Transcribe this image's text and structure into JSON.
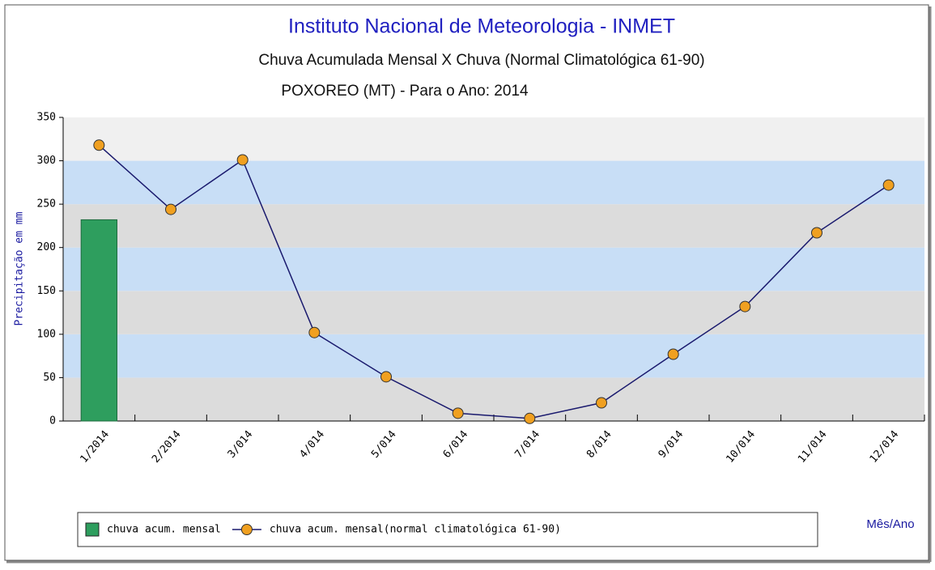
{
  "chart_data": {
    "type": "combo",
    "title": "Instituto Nacional de Meteorologia - INMET",
    "subtitle": "Chuva Acumulada Mensal X Chuva (Normal Climatológica 61-90)",
    "subtitle2": "POXOREO (MT) - Para o Ano: 2014",
    "y_label": "Precipitação em mm",
    "x_label": "Mês/Ano",
    "categories": [
      "1/2014",
      "2/2014",
      "3/014",
      "4/014",
      "5/014",
      "6/014",
      "7/014",
      "8/014",
      "9/014",
      "10/014",
      "11/014",
      "12/014"
    ],
    "series": [
      {
        "name": "chuva acum. mensal",
        "type": "bar",
        "color": "#2e9e5e",
        "values": [
          232,
          null,
          null,
          null,
          null,
          null,
          null,
          null,
          null,
          null,
          null,
          null
        ]
      },
      {
        "name": "chuva acum. mensal(normal climatológica 61-90)",
        "type": "line",
        "color": "#1a1a6e",
        "marker_color": "#f0a020",
        "values": [
          318,
          244,
          301,
          102,
          51,
          9,
          3,
          21,
          77,
          132,
          217,
          272
        ]
      }
    ],
    "ylim": [
      0,
      350
    ],
    "yticks": [
      0,
      50,
      100,
      150,
      200,
      250,
      300,
      350
    ],
    "grid": true,
    "legend": "bottom"
  }
}
